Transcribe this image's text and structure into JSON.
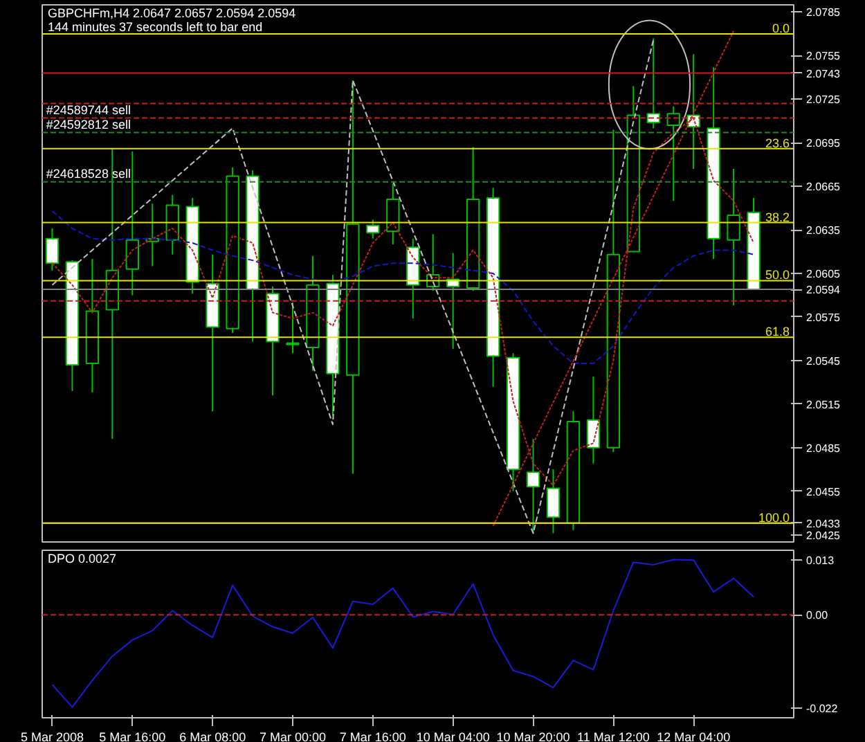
{
  "chart_data": [
    {
      "type": "candlestick",
      "title": "GBPCHFm,H4  2.0647 2.0657 2.0594 2.0594",
      "subtitle": "144 minutes 37 seconds left to bar end",
      "color": "#00c000",
      "categories": [
        "5 Mar 2008",
        null,
        null,
        null,
        "5 Mar 16:00",
        null,
        null,
        null,
        "6 Mar 08:00",
        null,
        null,
        null,
        "7 Mar 00:00",
        null,
        null,
        null,
        "7 Mar 16:00",
        null,
        null,
        null,
        "10 Mar 04:00",
        null,
        null,
        null,
        "10 Mar 20:00",
        null,
        null,
        null,
        "11 Mar 12:00",
        null,
        null,
        null,
        "12 Mar 04:00",
        null,
        null,
        null
      ],
      "ohlc": [
        [
          2.0629,
          2.0636,
          2.0607,
          2.0612
        ],
        [
          2.0613,
          2.0614,
          2.0524,
          2.0542
        ],
        [
          2.0543,
          2.0615,
          2.0523,
          2.0579
        ],
        [
          2.058,
          2.0691,
          2.0491,
          2.0607
        ],
        [
          2.0608,
          2.0689,
          2.059,
          2.0628
        ],
        [
          2.0627,
          2.0653,
          2.061,
          2.0629
        ],
        [
          2.0628,
          2.0659,
          2.0618,
          2.0652
        ],
        [
          2.0651,
          2.0657,
          2.0591,
          2.0599
        ],
        [
          2.0598,
          2.0618,
          2.051,
          2.0568
        ],
        [
          2.0567,
          2.0678,
          2.0564,
          2.0672
        ],
        [
          2.0672,
          2.0676,
          2.0558,
          2.0594
        ],
        [
          2.0591,
          2.0596,
          2.0521,
          2.0558
        ],
        [
          2.0557,
          2.0585,
          2.055,
          2.0556
        ],
        [
          2.0554,
          2.0617,
          2.0538,
          2.0597
        ],
        [
          2.0598,
          2.0604,
          2.0507,
          2.0536
        ],
        [
          2.0535,
          2.0738,
          2.0467,
          2.0639
        ],
        [
          2.0638,
          2.0642,
          2.0629,
          2.0633
        ],
        [
          2.0634,
          2.0667,
          2.0625,
          2.0656
        ],
        [
          2.0623,
          2.0629,
          2.0574,
          2.0597
        ],
        [
          2.0596,
          2.0632,
          2.0593,
          2.0604
        ],
        [
          2.0601,
          2.0619,
          2.0553,
          2.0596
        ],
        [
          2.0595,
          2.0692,
          2.0593,
          2.0656
        ],
        [
          2.0657,
          2.0664,
          2.0527,
          2.0548
        ],
        [
          2.0547,
          2.055,
          2.0455,
          2.047
        ],
        [
          2.0468,
          2.0491,
          2.0426,
          2.0458
        ],
        [
          2.0457,
          2.047,
          2.0426,
          2.0437
        ],
        [
          2.0433,
          2.051,
          2.0428,
          2.0503
        ],
        [
          2.0504,
          2.0534,
          2.0474,
          2.0485
        ],
        [
          2.0485,
          2.0704,
          2.0482,
          2.0618
        ],
        [
          2.062,
          2.0734,
          2.062,
          2.0714
        ],
        [
          2.0715,
          2.0767,
          2.0705,
          2.0709
        ],
        [
          2.0707,
          2.072,
          2.0655,
          2.0715
        ],
        [
          2.0714,
          2.0756,
          2.0677,
          2.0706
        ],
        [
          2.0705,
          2.0747,
          2.0615,
          2.0629
        ],
        [
          2.0628,
          2.0677,
          2.0583,
          2.0645
        ],
        [
          2.0647,
          2.0657,
          2.0594,
          2.0594
        ]
      ],
      "series": [
        {
          "type": "line",
          "color": "#1414c8",
          "line_style": "dashed",
          "values": [
            2.0648,
            2.0636,
            2.0629,
            2.0628,
            2.0629,
            2.0629,
            2.0628,
            2.0626,
            2.0621,
            2.0617,
            2.0614,
            2.0609,
            2.0604,
            2.0601,
            2.0599,
            2.0603,
            2.061,
            2.0612,
            2.0612,
            2.0611,
            2.0609,
            2.0607,
            2.0605,
            2.0593,
            2.0572,
            2.0555,
            2.0543,
            2.0543,
            2.0555,
            2.0576,
            2.0595,
            2.0609,
            2.0617,
            2.0621,
            2.0621,
            2.0618
          ]
        },
        {
          "type": "line",
          "color": "#c81e1e",
          "line_style": "dotted",
          "values": [
            2.0612,
            2.0597,
            2.0578,
            2.0602,
            2.0621,
            2.0629,
            2.0636,
            2.0621,
            2.0588,
            2.0631,
            2.0626,
            2.0578,
            2.0574,
            2.0578,
            2.0569,
            2.0597,
            2.0626,
            2.064,
            2.0616,
            2.0602,
            2.0602,
            2.0621,
            2.0602,
            2.0517,
            2.0474,
            2.0459,
            2.0483,
            2.0488,
            2.0545,
            2.065,
            2.0688,
            2.0702,
            2.0712,
            2.0669,
            2.0655,
            2.0626
          ]
        },
        {
          "type": "line",
          "color": "#c0c0c0",
          "line_style": "dashed",
          "values": [
            2.0597,
            null,
            null,
            null,
            null,
            null,
            null,
            null,
            null,
            2.0705,
            null,
            null,
            null,
            null,
            2.0501,
            2.0738,
            null,
            null,
            null,
            null,
            null,
            null,
            null,
            null,
            2.0426,
            null,
            null,
            null,
            null,
            null,
            2.0766,
            null,
            null,
            null,
            null,
            null
          ]
        },
        {
          "type": "line",
          "color": "#c81e1e",
          "line_style": "dotted",
          "values": [
            null,
            null,
            null,
            null,
            null,
            null,
            null,
            null,
            null,
            null,
            null,
            null,
            null,
            null,
            null,
            null,
            null,
            null,
            null,
            null,
            null,
            null,
            2.0431,
            null,
            null,
            null,
            null,
            null,
            null,
            null,
            null,
            null,
            null,
            null,
            2.0772,
            null
          ]
        }
      ],
      "ylim": [
        2.042,
        2.079
      ],
      "yticks": [
        2.0785,
        2.0755,
        {
          "value": 2.0743,
          "label": "2.0743"
        },
        2.0725,
        2.0695,
        2.0665,
        2.0635,
        2.0605,
        {
          "value": 2.0594,
          "label": "2.0594"
        },
        2.0575,
        2.0545,
        2.0515,
        2.0485,
        2.0455,
        {
          "value": 2.0433,
          "label": "2.0433"
        },
        2.0425
      ],
      "tick_labels": "y",
      "ref_lines": [
        {
          "axis": "y",
          "value": 2.0743,
          "color": "#c81e1e"
        },
        {
          "axis": "y",
          "value": 2.0594,
          "color": "#808080"
        },
        {
          "axis": "y",
          "value": 2.0722,
          "color": "#c81e1e",
          "line_style": "dashed"
        },
        {
          "axis": "y",
          "value": 2.0712,
          "color": "#c81e1e",
          "line_style": "dashed"
        },
        {
          "axis": "y",
          "value": 2.0702,
          "color": "#1e8c1e",
          "line_style": "dashed"
        },
        {
          "axis": "y",
          "value": 2.0668,
          "color": "#1e8c1e",
          "line_style": "dashed"
        },
        {
          "axis": "y",
          "value": 2.0586,
          "color": "#c81e1e",
          "line_style": "dashed"
        },
        {
          "axis": "y",
          "value": 2.077,
          "color": "#e6e600"
        },
        {
          "axis": "y",
          "value": 2.0691,
          "color": "#e6e600"
        },
        {
          "axis": "y",
          "value": 2.064,
          "color": "#e6e600"
        },
        {
          "axis": "y",
          "value": 2.06,
          "color": "#e6e600"
        },
        {
          "axis": "y",
          "value": 2.0561,
          "color": "#e6e600"
        },
        {
          "axis": "y",
          "value": 2.0433,
          "color": "#e07000"
        },
        {
          "axis": "y",
          "value": 2.0433,
          "color": "#e6e600"
        }
      ],
      "annotations": [
        {
          "text": "0.0",
          "y": 2.077
        },
        {
          "text": "23.6",
          "y": 2.0691
        },
        {
          "text": "38.2",
          "y": 2.064
        },
        {
          "text": "50.0",
          "y": 2.06
        },
        {
          "text": "61.8",
          "y": 2.0561
        },
        {
          "text": "100.0",
          "y": 2.0433
        },
        {
          "text": "#24589744 sell",
          "x": "5 Mar 2008",
          "y": 2.0712
        },
        {
          "text": "#24592812 sell",
          "x": "5 Mar 2008",
          "y": 2.0702
        },
        {
          "text": "#24618528 sell",
          "x": "5 Mar 2008",
          "y": 2.0668
        }
      ]
    },
    {
      "type": "line",
      "title": "DPO 0.0027",
      "categories": [
        "5 Mar 2008",
        null,
        null,
        null,
        "5 Mar 16:00",
        null,
        null,
        null,
        "6 Mar 08:00",
        null,
        null,
        null,
        "7 Mar 00:00",
        null,
        null,
        null,
        "7 Mar 16:00",
        null,
        null,
        null,
        "10 Mar 04:00",
        null,
        null,
        null,
        "10 Mar 20:00",
        null,
        null,
        null,
        "11 Mar 12:00",
        null,
        null,
        null,
        "12 Mar 04:00",
        null,
        null,
        null
      ],
      "series": [
        {
          "color": "#1a1adc",
          "values": [
            -0.0164,
            -0.0217,
            -0.0154,
            -0.0097,
            -0.0059,
            -0.0037,
            0.001,
            -0.0025,
            -0.0053,
            0.007,
            -0.0003,
            -0.0028,
            -0.0043,
            -0.0006,
            -0.0078,
            0.0032,
            0.0025,
            0.0063,
            -0.0005,
            0.0008,
            0.0001,
            0.0073,
            -0.0047,
            -0.0131,
            -0.0145,
            -0.0171,
            -0.0107,
            -0.0129,
            0.001,
            0.0124,
            0.0118,
            0.013,
            0.0129,
            0.0054,
            0.0086,
            0.0042
          ]
        }
      ],
      "ylim": [
        -0.0242,
        0.0152
      ],
      "yticks": [
        0.013,
        {
          "value": 0,
          "label": "0.00"
        },
        -0.022
      ],
      "ref_lines": [
        {
          "axis": "y",
          "value": 0,
          "color": "#c81e1e",
          "line_style": "dashed"
        }
      ]
    }
  ]
}
